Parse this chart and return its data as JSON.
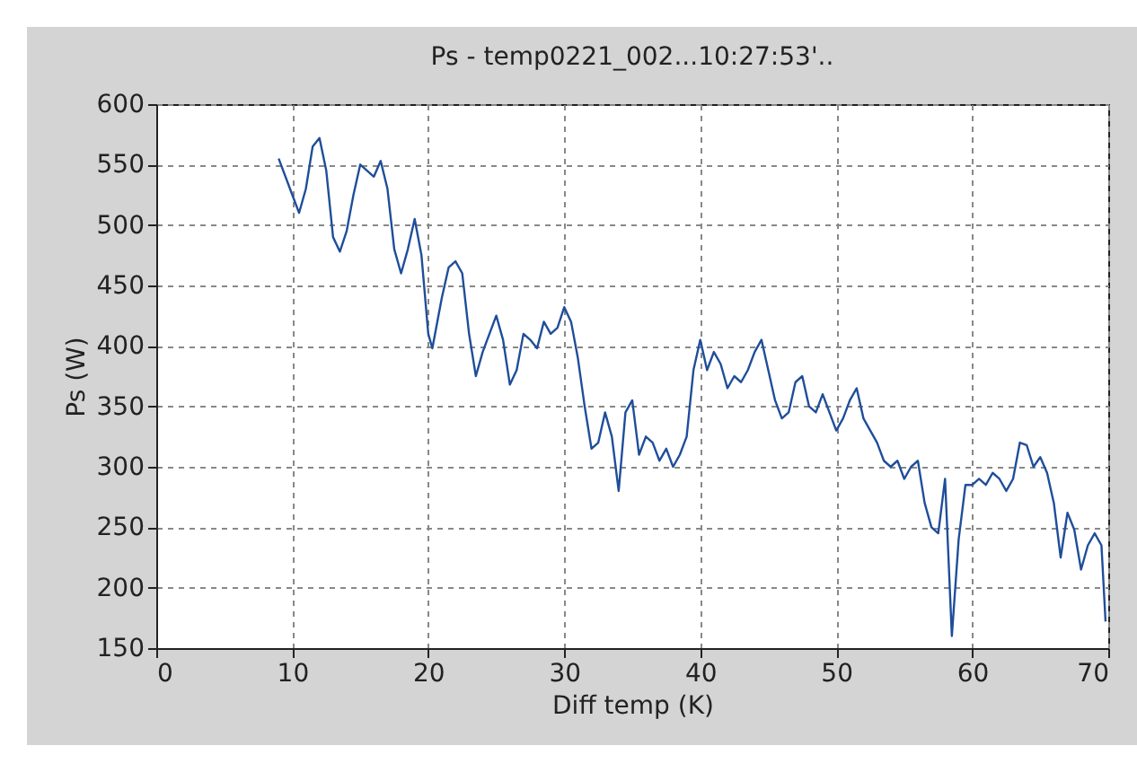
{
  "chart_data": {
    "type": "line",
    "title": "Ps - temp0221_002...10:27:53'..",
    "xlabel": "Diff temp (K)",
    "ylabel": "Ps (W)",
    "x": [
      9,
      10,
      10.5,
      11,
      11.5,
      12,
      12.5,
      13,
      13.5,
      14,
      14.5,
      15,
      15.5,
      16,
      16.5,
      17,
      17.5,
      18,
      18.5,
      19,
      19.5,
      20,
      20.3,
      21,
      21.5,
      22,
      22.5,
      23,
      23.5,
      24,
      25,
      25.5,
      26,
      26.5,
      27,
      27.5,
      28,
      28.5,
      29,
      29.5,
      30,
      30.5,
      31,
      31.5,
      32,
      32.5,
      33,
      33.5,
      34,
      34.5,
      35,
      35.5,
      36,
      36.5,
      37,
      37.5,
      38,
      38.5,
      39,
      39.5,
      40,
      40.5,
      41,
      41.5,
      42,
      42.5,
      43,
      43.5,
      44,
      44.5,
      45,
      45.5,
      46,
      46.5,
      47,
      47.5,
      48,
      48.5,
      49,
      49.5,
      50,
      50.5,
      51,
      51.5,
      52,
      52.5,
      53,
      53.5,
      54,
      54.5,
      55,
      55.5,
      56,
      56.5,
      57,
      57.5,
      58,
      58.5,
      59,
      59.5,
      60,
      60.5,
      61,
      61.5,
      62,
      62.5,
      63,
      63.5,
      64,
      64.5,
      65,
      65.5,
      66,
      66.5,
      67,
      67.5,
      68,
      68.5,
      69,
      69.5,
      69.8
    ],
    "series": [
      {
        "color": "#1f4e9a",
        "values": [
          555,
          525,
          510,
          530,
          565,
          572,
          545,
          490,
          478,
          495,
          525,
          550,
          545,
          540,
          553,
          530,
          480,
          460,
          480,
          505,
          475,
          410,
          398,
          440,
          465,
          470,
          460,
          410,
          375,
          395,
          425,
          405,
          368,
          380,
          410,
          405,
          398,
          420,
          410,
          415,
          432,
          420,
          390,
          350,
          315,
          320,
          345,
          325,
          280,
          345,
          355,
          310,
          325,
          320,
          305,
          315,
          300,
          310,
          325,
          380,
          405,
          380,
          395,
          385,
          365,
          375,
          370,
          380,
          395,
          405,
          380,
          355,
          340,
          345,
          370,
          375,
          350,
          345,
          360,
          345,
          330,
          340,
          355,
          365,
          340,
          330,
          320,
          305,
          300,
          305,
          290,
          300,
          305,
          270,
          250,
          245,
          290,
          160,
          240,
          285,
          285,
          290,
          285,
          295,
          290,
          280,
          290,
          320,
          318,
          300,
          308,
          295,
          270,
          225,
          262,
          248,
          215,
          235,
          245,
          235,
          172
        ]
      }
    ],
    "xlim": [
      0,
      70
    ],
    "ylim": [
      150,
      600
    ],
    "xticks": [
      0,
      10,
      20,
      30,
      40,
      50,
      60,
      70
    ],
    "yticks": [
      150,
      200,
      250,
      300,
      350,
      400,
      450,
      500,
      550,
      600
    ],
    "grid": true,
    "line_style": "solid",
    "marker": "none",
    "legend": false
  }
}
